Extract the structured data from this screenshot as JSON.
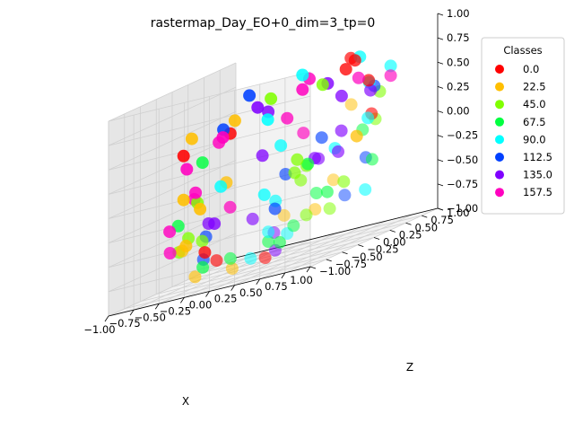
{
  "chart_data": {
    "type": "scatter",
    "title": "rastermap_Day_EO+0_dim=3_tp=0",
    "xlabel": "X",
    "ylabel": "",
    "zlabel": "Z",
    "xlim": [
      -1.0,
      1.0
    ],
    "ylim": [
      -1.0,
      1.0
    ],
    "zlim": [
      -1.0,
      1.0
    ],
    "grid": true,
    "legend_placement": "top-right, outside",
    "legend_title": "Classes",
    "x_ticks": [
      "−1.00",
      "−0.75",
      "−0.50",
      "−0.25",
      "0.00",
      "0.25",
      "0.50",
      "0.75",
      "1.00"
    ],
    "y_ticks": [
      "1.00",
      "0.75",
      "0.50",
      "0.25",
      "0.00",
      "−0.25",
      "−0.50",
      "−0.75",
      "−1.00"
    ],
    "z_ticks": [
      "1.00",
      "0.75",
      "0.50",
      "0.25",
      "0.00",
      "−0.25",
      "−0.50",
      "−0.75",
      "−1.00"
    ],
    "series": [
      {
        "name": "0.0",
        "color": "#ff0000",
        "points": [
          [
            0.55,
            0.35,
            0.85
          ],
          [
            0.42,
            0.62,
            0.78
          ],
          [
            0.28,
            0.7,
            0.7
          ],
          [
            -0.95,
            0.1,
            0.3
          ],
          [
            -0.55,
            0.2,
            0.4
          ],
          [
            0.85,
            0.2,
            0.25
          ],
          [
            0.3,
            -0.6,
            -0.85
          ],
          [
            -0.15,
            -0.65,
            -0.75
          ],
          [
            -0.55,
            -0.2,
            -0.7
          ],
          [
            0.6,
            0.55,
            0.55
          ]
        ]
      },
      {
        "name": "22.5",
        "color": "#ffbf00",
        "points": [
          [
            -0.9,
            0.15,
            0.45
          ],
          [
            -0.6,
            0.35,
            0.5
          ],
          [
            -0.95,
            0.1,
            -0.15
          ],
          [
            -0.85,
            0.2,
            -0.3
          ],
          [
            -0.8,
            -0.1,
            -0.6
          ],
          [
            -0.65,
            -0.4,
            -0.6
          ],
          [
            0.1,
            -0.8,
            -0.85
          ],
          [
            -0.3,
            -0.75,
            -0.85
          ],
          [
            0.7,
            -0.45,
            -0.5
          ],
          [
            0.45,
            0.6,
            0.0
          ],
          [
            0.9,
            -0.2,
            0.45
          ],
          [
            0.55,
            -0.7,
            -0.45
          ],
          [
            -0.4,
            -0.1,
            -0.05
          ],
          [
            0.85,
            -0.4,
            -0.25
          ]
        ]
      },
      {
        "name": "45.0",
        "color": "#80ff00",
        "points": [
          [
            -0.4,
            0.6,
            0.6
          ],
          [
            0.05,
            0.7,
            0.6
          ],
          [
            0.9,
            0.25,
            0.45
          ],
          [
            0.95,
            0.1,
            0.2
          ],
          [
            -0.75,
            0.0,
            -0.2
          ],
          [
            -0.65,
            -0.3,
            -0.5
          ],
          [
            -0.65,
            -0.45,
            -0.6
          ],
          [
            -0.45,
            -0.4,
            -0.55
          ],
          [
            0.4,
            -0.2,
            -0.2
          ],
          [
            0.55,
            -0.35,
            -0.55
          ],
          [
            0.75,
            -0.3,
            -0.55
          ],
          [
            0.7,
            0.0,
            -0.35
          ],
          [
            0.3,
            0.05,
            -0.1
          ],
          [
            0.05,
            0.3,
            -0.05
          ],
          [
            0.15,
            0.1,
            -0.15
          ]
        ]
      },
      {
        "name": "67.5",
        "color": "#00ff40",
        "points": [
          [
            -0.7,
            0.0,
            0.2
          ],
          [
            -0.75,
            -0.3,
            -0.35
          ],
          [
            -0.35,
            -0.55,
            -0.8
          ],
          [
            0.05,
            -0.75,
            -0.75
          ],
          [
            0.35,
            -0.45,
            -0.75
          ],
          [
            0.55,
            -0.55,
            -0.6
          ],
          [
            0.65,
            -0.35,
            -0.35
          ],
          [
            0.95,
            -0.1,
            0.15
          ],
          [
            0.95,
            0.05,
            -0.2
          ],
          [
            0.25,
            0.15,
            -0.1
          ],
          [
            0.6,
            -0.1,
            -0.4
          ],
          [
            0.3,
            -0.55,
            -0.7
          ]
        ]
      },
      {
        "name": "90.0",
        "color": "#00ffff",
        "points": [
          [
            -0.15,
            0.7,
            0.75
          ],
          [
            0.45,
            0.65,
            0.8
          ],
          [
            0.85,
            0.5,
            0.65
          ],
          [
            0.7,
            0.4,
            0.55
          ],
          [
            -0.4,
            0.55,
            0.4
          ],
          [
            -0.05,
            0.2,
            0.15
          ],
          [
            0.75,
            0.3,
            0.2
          ],
          [
            0.55,
            0.1,
            0.0
          ],
          [
            -0.55,
            0.05,
            -0.1
          ],
          [
            0.3,
            -0.55,
            -0.6
          ],
          [
            0.55,
            -0.65,
            -0.65
          ],
          [
            0.25,
            -0.75,
            -0.8
          ],
          [
            0.85,
            0.1,
            -0.5
          ],
          [
            -0.15,
            0.1,
            -0.3
          ],
          [
            0.15,
            -0.2,
            -0.35
          ]
        ]
      },
      {
        "name": "112.5",
        "color": "#0040ff",
        "points": [
          [
            -0.55,
            0.5,
            0.7
          ],
          [
            0.75,
            0.4,
            0.5
          ],
          [
            0.95,
            -0.05,
            -0.15
          ],
          [
            0.9,
            -0.3,
            -0.45
          ],
          [
            -0.35,
            -0.5,
            -0.5
          ],
          [
            -0.25,
            -0.7,
            -0.7
          ],
          [
            0.25,
            -0.2,
            -0.1
          ],
          [
            0.45,
            0.05,
            0.15
          ],
          [
            -0.65,
            0.25,
            0.45
          ],
          [
            0.05,
            -0.05,
            -0.45
          ]
        ]
      },
      {
        "name": "135.0",
        "color": "#8000ff",
        "points": [
          [
            -0.5,
            0.55,
            0.55
          ],
          [
            -0.3,
            0.4,
            0.5
          ],
          [
            0.1,
            0.7,
            0.6
          ],
          [
            0.3,
            0.6,
            0.45
          ],
          [
            0.65,
            0.5,
            0.45
          ],
          [
            0.55,
            0.2,
            0.15
          ],
          [
            0.45,
            0.0,
            -0.05
          ],
          [
            0.35,
            0.1,
            -0.05
          ],
          [
            -0.45,
            -0.3,
            -0.4
          ],
          [
            0.05,
            -0.4,
            -0.45
          ],
          [
            -0.55,
            -0.05,
            -0.45
          ],
          [
            0.4,
            -0.6,
            -0.8
          ],
          [
            0.45,
            -0.7,
            -0.6
          ],
          [
            -0.2,
            0.15,
            0.1
          ],
          [
            0.55,
            0.15,
            -0.05
          ]
        ]
      },
      {
        "name": "157.5",
        "color": "#ff00bf",
        "points": [
          [
            -0.75,
            0.4,
            0.35
          ],
          [
            -0.95,
            0.15,
            0.15
          ],
          [
            -0.8,
            0.05,
            -0.1
          ],
          [
            -0.75,
            -0.05,
            -0.15
          ],
          [
            -0.9,
            -0.2,
            -0.4
          ],
          [
            -0.8,
            -0.35,
            -0.6
          ],
          [
            -0.15,
            0.7,
            0.6
          ],
          [
            -0.05,
            0.65,
            0.7
          ],
          [
            0.5,
            0.55,
            0.6
          ],
          [
            0.85,
            0.5,
            0.55
          ],
          [
            0.3,
            0.0,
            0.25
          ],
          [
            -0.05,
            0.3,
            0.4
          ],
          [
            -0.3,
            -0.2,
            -0.3
          ],
          [
            -0.6,
            0.1,
            0.35
          ]
        ]
      }
    ]
  }
}
